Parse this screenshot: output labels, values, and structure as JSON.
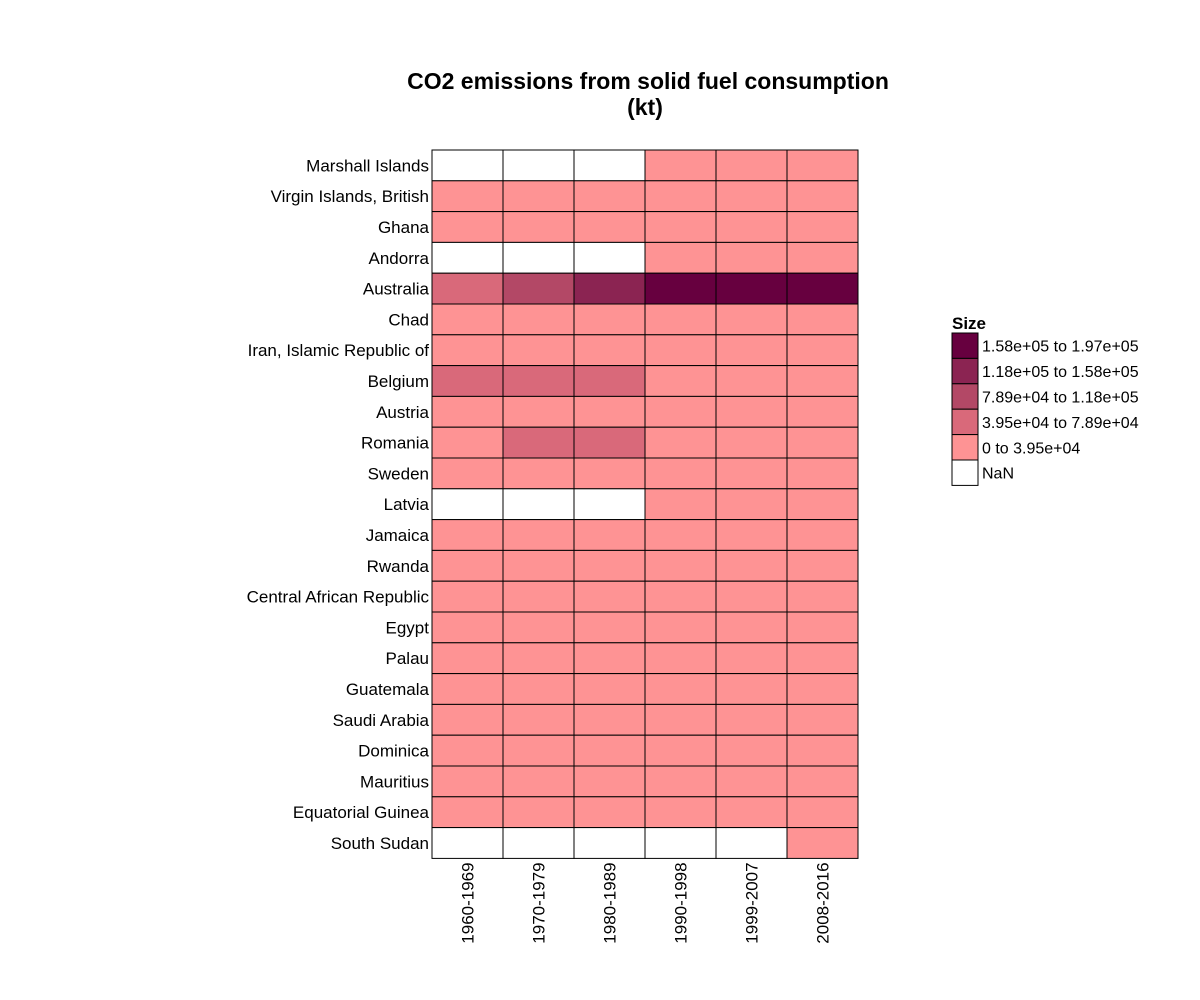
{
  "chart_data": {
    "type": "heatmap",
    "title": "CO2 emissions from solid fuel consumption",
    "title_unit": "(kt)",
    "columns": [
      "1960-1969",
      "1970-1979",
      "1980-1989",
      "1990-1998",
      "1999-2007",
      "2008-2016"
    ],
    "rows": [
      "Marshall Islands",
      "Virgin Islands, British",
      "Ghana",
      "Andorra",
      "Australia",
      "Chad",
      "Iran, Islamic Republic of",
      "Belgium",
      "Austria",
      "Romania",
      "Sweden",
      "Latvia",
      "Jamaica",
      "Rwanda",
      "Central African Republic",
      "Egypt",
      "Palau",
      "Guatemala",
      "Saudi Arabia",
      "Dominica",
      "Mauritius",
      "Equatorial Guinea",
      "South Sudan"
    ],
    "bin_matrix": [
      [
        -1,
        -1,
        -1,
        0,
        0,
        0
      ],
      [
        0,
        0,
        0,
        0,
        0,
        0
      ],
      [
        0,
        0,
        0,
        0,
        0,
        0
      ],
      [
        -1,
        -1,
        -1,
        0,
        0,
        0
      ],
      [
        1,
        2,
        3,
        4,
        4,
        4
      ],
      [
        0,
        0,
        0,
        0,
        0,
        0
      ],
      [
        0,
        0,
        0,
        0,
        0,
        0
      ],
      [
        1,
        1,
        1,
        0,
        0,
        0
      ],
      [
        0,
        0,
        0,
        0,
        0,
        0
      ],
      [
        0,
        1,
        1,
        0,
        0,
        0
      ],
      [
        0,
        0,
        0,
        0,
        0,
        0
      ],
      [
        -1,
        -1,
        -1,
        0,
        0,
        0
      ],
      [
        0,
        0,
        0,
        0,
        0,
        0
      ],
      [
        0,
        0,
        0,
        0,
        0,
        0
      ],
      [
        0,
        0,
        0,
        0,
        0,
        0
      ],
      [
        0,
        0,
        0,
        0,
        0,
        0
      ],
      [
        0,
        0,
        0,
        0,
        0,
        0
      ],
      [
        0,
        0,
        0,
        0,
        0,
        0
      ],
      [
        0,
        0,
        0,
        0,
        0,
        0
      ],
      [
        0,
        0,
        0,
        0,
        0,
        0
      ],
      [
        0,
        0,
        0,
        0,
        0,
        0
      ],
      [
        0,
        0,
        0,
        0,
        0,
        0
      ],
      [
        -1,
        -1,
        -1,
        -1,
        -1,
        0
      ]
    ],
    "legend": {
      "title": "Size",
      "position": "right",
      "bins": [
        {
          "label": "1.58e+05 to 1.97e+05",
          "color": "#67003f"
        },
        {
          "label": "1.18e+05 to 1.58e+05",
          "color": "#8b2452"
        },
        {
          "label": "7.89e+04 to 1.18e+05",
          "color": "#b34866"
        },
        {
          "label": "3.95e+04 to 7.89e+04",
          "color": "#d9697a"
        },
        {
          "label": "0 to 3.95e+04",
          "color": "#fe9394"
        },
        {
          "label": "NaN",
          "color": "#ffffff"
        }
      ]
    },
    "bin_colors": [
      "#fe9394",
      "#d9697a",
      "#b34866",
      "#8b2452",
      "#67003f"
    ],
    "nan_color": "#ffffff",
    "grid": true
  }
}
